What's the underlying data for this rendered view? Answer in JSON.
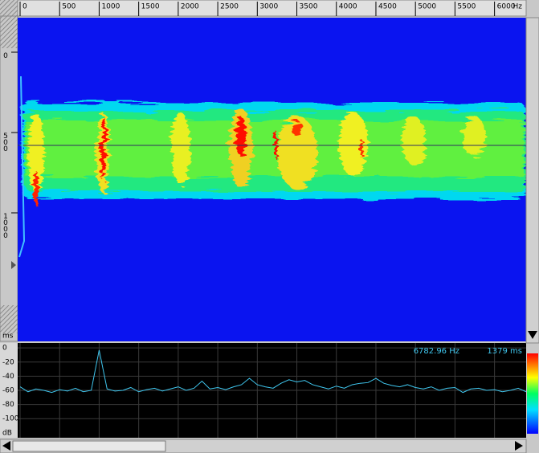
{
  "frequency_axis": {
    "unit": "Hz",
    "xlim": [
      0,
      6400
    ],
    "ticks": [
      0,
      500,
      1000,
      1500,
      2000,
      2500,
      3000,
      3500,
      4000,
      4500,
      5000,
      5500,
      6000
    ]
  },
  "time_axis": {
    "unit": "ms",
    "ylim": [
      -215,
      1800
    ],
    "ticks": [
      0,
      500,
      1000
    ]
  },
  "spectrum": {
    "type": "line",
    "unit": "dB",
    "color": "#40c8f0",
    "ylim": [
      -127,
      7
    ],
    "yticks": [
      0,
      -20,
      -40,
      -60,
      -80,
      -100
    ],
    "x": [
      0,
      100,
      200,
      300,
      400,
      500,
      600,
      700,
      800,
      900,
      1000,
      1100,
      1200,
      1300,
      1400,
      1500,
      1600,
      1700,
      1800,
      1900,
      2000,
      2100,
      2200,
      2300,
      2400,
      2500,
      2600,
      2700,
      2800,
      2900,
      3000,
      3100,
      3200,
      3300,
      3400,
      3500,
      3600,
      3700,
      3800,
      3900,
      4000,
      4100,
      4200,
      4300,
      4400,
      4500,
      4600,
      4700,
      4800,
      4900,
      5000,
      5100,
      5200,
      5300,
      5400,
      5500,
      5600,
      5700,
      5800,
      5900,
      6000,
      6100,
      6200,
      6300,
      6400
    ],
    "values": [
      -55,
      -62,
      -58,
      -60,
      -63,
      -59,
      -61,
      -57,
      -62,
      -60,
      -3,
      -58,
      -61,
      -60,
      -56,
      -62,
      -59,
      -57,
      -61,
      -58,
      -55,
      -60,
      -57,
      -47,
      -58,
      -56,
      -59,
      -55,
      -52,
      -43,
      -52,
      -55,
      -57,
      -50,
      -45,
      -48,
      -46,
      -52,
      -55,
      -58,
      -54,
      -57,
      -52,
      -50,
      -49,
      -43,
      -50,
      -53,
      -55,
      -52,
      -56,
      -58,
      -55,
      -60,
      -57,
      -56,
      -63,
      -58,
      -57,
      -60,
      -59,
      -62,
      -60,
      -57,
      -62
    ]
  },
  "readout": {
    "frequency": "6782.96 Hz",
    "time": "1379 ms"
  }
}
